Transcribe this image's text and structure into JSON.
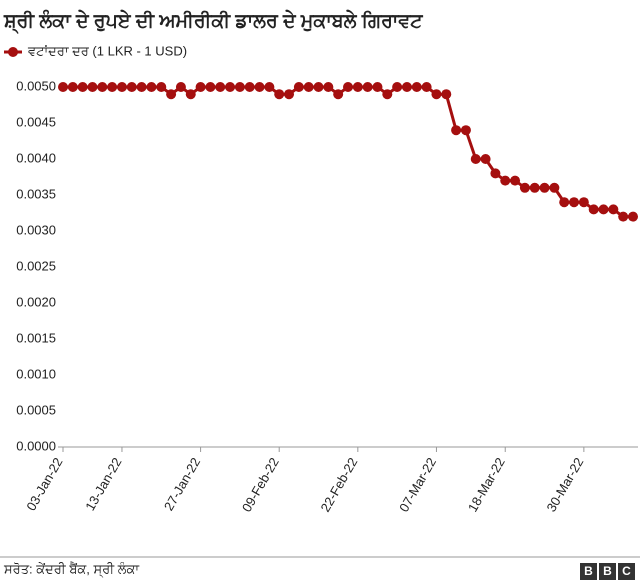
{
  "chart_data": {
    "type": "line",
    "title": "ਸ਼੍ਰੀ ਲੰਕਾ ਦੇ ਰੁਪਏ ਦੀ ਅਮੀਰੀਕੀ ਡਾਲਰ ਦੇ ਮੁਕਾਬਲੇ ਗਿਰਾਵਟ",
    "categories": [
      "03-Jan-22",
      null,
      null,
      null,
      null,
      null,
      "13-Jan-22",
      null,
      null,
      null,
      null,
      null,
      null,
      null,
      "27-Jan-22",
      null,
      null,
      null,
      null,
      null,
      null,
      null,
      "09-Feb-22",
      null,
      null,
      null,
      null,
      null,
      null,
      null,
      "22-Feb-22",
      null,
      null,
      null,
      null,
      null,
      null,
      null,
      "07-Mar-22",
      null,
      null,
      null,
      null,
      null,
      null,
      "18-Mar-22",
      null,
      null,
      null,
      null,
      null,
      null,
      null,
      "30-Mar-22",
      null,
      null,
      null,
      null,
      null
    ],
    "series": [
      {
        "name": "ਵਟਾਂਦਰਾ ਦਰ (1 LKR - 1 USD)",
        "color": "#a50f0f",
        "values": [
          0.005,
          0.005,
          0.005,
          0.005,
          0.005,
          0.005,
          0.005,
          0.005,
          0.005,
          0.005,
          0.005,
          0.0049,
          0.005,
          0.0049,
          0.005,
          0.005,
          0.005,
          0.005,
          0.005,
          0.005,
          0.005,
          0.005,
          0.0049,
          0.0049,
          0.005,
          0.005,
          0.005,
          0.005,
          0.0049,
          0.005,
          0.005,
          0.005,
          0.005,
          0.0049,
          0.005,
          0.005,
          0.005,
          0.005,
          0.0049,
          0.0049,
          0.0044,
          0.0044,
          0.004,
          0.004,
          0.0038,
          0.0037,
          0.0037,
          0.0036,
          0.0036,
          0.0036,
          0.0036,
          0.0034,
          0.0034,
          0.0034,
          0.0033,
          0.0033,
          0.0033,
          0.0032,
          0.0032
        ]
      }
    ],
    "ylim": [
      0,
      0.005
    ],
    "yticks": [
      {
        "value": 0,
        "label": "0.0000"
      },
      {
        "value": 0.0005,
        "label": "0.0005"
      },
      {
        "value": 0.001,
        "label": "0.0010"
      },
      {
        "value": 0.0015,
        "label": "0.0015"
      },
      {
        "value": 0.002,
        "label": "0.0020"
      },
      {
        "value": 0.0025,
        "label": "0.0025"
      },
      {
        "value": 0.003,
        "label": "0.0030"
      },
      {
        "value": 0.0035,
        "label": "0.0035"
      },
      {
        "value": 0.004,
        "label": "0.0040"
      },
      {
        "value": 0.0045,
        "label": "0.0045"
      },
      {
        "value": 0.005,
        "label": "0.0050"
      }
    ],
    "grid": false,
    "source": "ਸਰੋਤ: ਕੇਂਦਰੀ ਬੈਂਕ, ਸ੍ਰੀ ਲੰਕਾ",
    "logo": [
      "B",
      "B",
      "C"
    ]
  }
}
